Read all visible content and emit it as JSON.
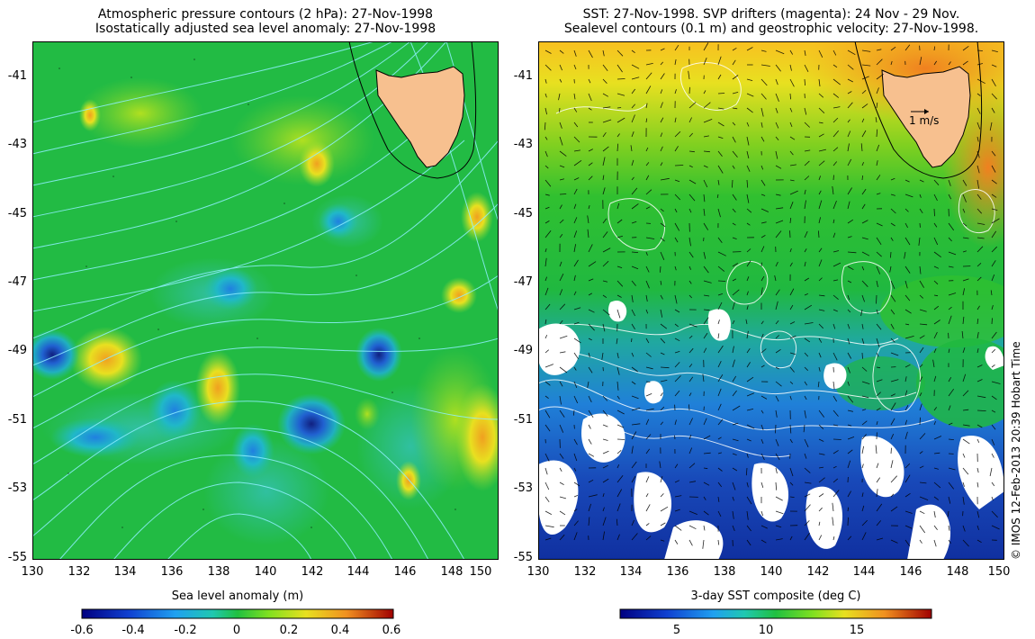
{
  "left_panel": {
    "title_line1": "Atmospheric pressure contours (2 hPa): 27-Nov-1998",
    "title_line2": "Isostatically adjusted sea level anomaly: 27-Nov-1998",
    "colorbar_title": "Sea level anomaly (m)",
    "colorbar_ticks": [
      "-0.6",
      "-0.4",
      "-0.2",
      "0",
      "0.2",
      "0.4",
      "0.6"
    ]
  },
  "right_panel": {
    "title_line1": "SST: 27-Nov-1998. SVP drifters (magenta): 24 Nov - 29 Nov.",
    "title_line2": "Sealevel contours (0.1 m) and geostrophic velocity: 27-Nov-1998.",
    "colorbar_title": "3-day SST composite (deg C)",
    "colorbar_ticks": [
      "5",
      "10",
      "15"
    ],
    "vector_scale_label": "1 m/s"
  },
  "axes": {
    "lat_ticks": [
      "-41",
      "-43",
      "-45",
      "-47",
      "-49",
      "-51",
      "-53",
      "-55"
    ],
    "lon_ticks": [
      "130",
      "132",
      "134",
      "136",
      "138",
      "140",
      "142",
      "144",
      "146",
      "148",
      "150"
    ]
  },
  "credit": "© IMOS 12-Feb-2013 20:39 Hobart Time",
  "colors": {
    "sla_base": "#22bb44",
    "sst_warm": "#ff9922",
    "land": "#f7c08f",
    "contour_cyan": "#8ff0ff"
  }
}
